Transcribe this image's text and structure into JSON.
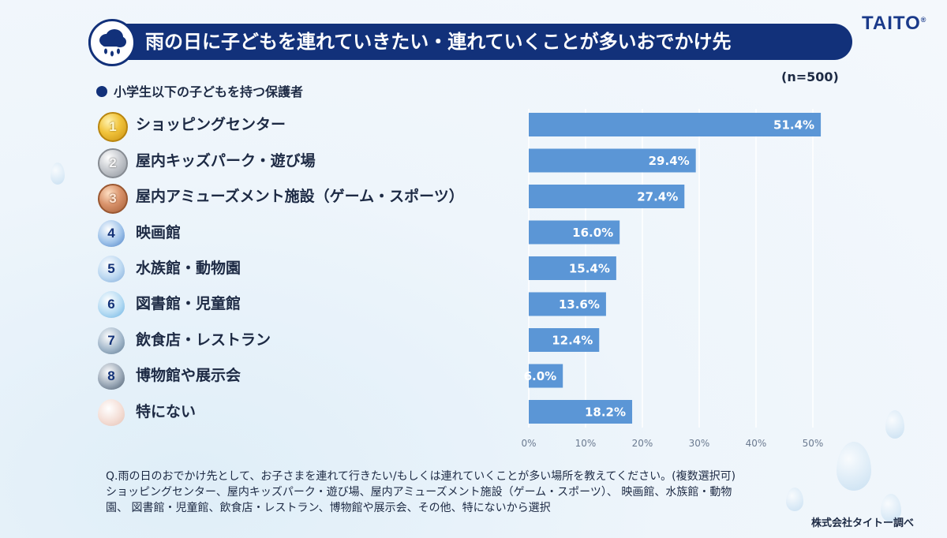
{
  "header": {
    "title": "雨の日に子どもを連れていきたい・連れていくことが多いおでかけ先",
    "logo": "TAITO",
    "logo_mark": "®"
  },
  "subtitle": "小学生以下の子どもを持つ保護者",
  "sample_size": "(n=500)",
  "ranks": [
    "1",
    "2",
    "3",
    "4",
    "5",
    "6",
    "7",
    "8",
    ""
  ],
  "chart_data": {
    "type": "bar",
    "orientation": "horizontal",
    "categories": [
      "ショッピングセンター",
      "屋内キッズパーク・遊び場",
      "屋内アミューズメント施設（ゲーム・スポーツ）",
      "映画館",
      "水族館・動物園",
      "図書館・児童館",
      "飲食店・レストラン",
      "博物館や展示会",
      "特にない"
    ],
    "values": [
      51.4,
      29.4,
      27.4,
      16.0,
      15.4,
      13.6,
      12.4,
      6.0,
      18.2
    ],
    "value_labels": [
      "51.4%",
      "29.4%",
      "27.4%",
      "16.0%",
      "15.4%",
      "13.6%",
      "12.4%",
      "6.0%",
      "18.2%"
    ],
    "xlim": [
      0,
      50
    ],
    "ticks": [
      0,
      10,
      20,
      30,
      40,
      50
    ],
    "tick_labels": [
      "0%",
      "10%",
      "20%",
      "30%",
      "40%",
      "50%"
    ],
    "bar_color": "#5b96d6",
    "grid": true
  },
  "footnote": [
    "Q.雨の日のおでかけ先として、お子さまを連れて行きたい/もしくは連れていくことが多い場所を教えてください。(複数選択可)",
    "ショッピングセンター、屋内キッズパーク・遊び場、屋内アミューズメント施設（ゲーム・スポーツ）、 映画館、水族館・動物",
    "園、 図書館・児童館、飲食店・レストラン、博物館や展示会、その他、特にないから選択"
  ],
  "source": "株式会社タイトー調べ",
  "colors": {
    "navy": "#12317a",
    "bar": "#5b96d6",
    "text": "#1d2a44"
  }
}
